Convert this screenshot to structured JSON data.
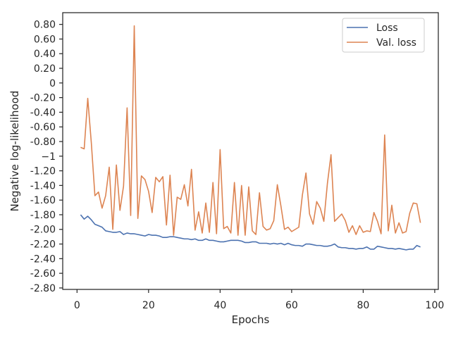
{
  "chart_data": {
    "type": "line",
    "xlabel": "Epochs",
    "ylabel": "Negative log-likelihood",
    "xlim": [
      -4,
      101
    ],
    "ylim": [
      -2.82,
      0.96
    ],
    "grid": false,
    "legend_position": "top-right",
    "x_ticks": [
      0,
      20,
      40,
      60,
      80,
      100
    ],
    "x_tick_labels": [
      "0",
      "20",
      "40",
      "60",
      "80",
      "100"
    ],
    "y_ticks": [
      0.8,
      0.6,
      0.4,
      0.2,
      0,
      -0.2,
      -0.4,
      -0.6,
      -0.8,
      -1.0,
      -1.2,
      -1.4,
      -1.6,
      -1.8,
      -2.0,
      -2.2,
      -2.4,
      -2.6,
      -2.8
    ],
    "y_tick_labels": [
      "0.80",
      "0.60",
      "0.40",
      "0.20",
      "0",
      "-0.20",
      "-0.40",
      "-0.60",
      "-0.80",
      "−1",
      "-1.20",
      "-1.40",
      "-1.60",
      "-1.80",
      "-2.00",
      "-2.20",
      "-2.40",
      "-2.60",
      "-2.80"
    ],
    "series": [
      {
        "name": "Loss",
        "color": "#4c72b0",
        "x": [
          1,
          2,
          3,
          4,
          5,
          6,
          7,
          8,
          9,
          10,
          11,
          12,
          13,
          14,
          15,
          16,
          17,
          18,
          19,
          20,
          21,
          22,
          23,
          24,
          25,
          26,
          27,
          28,
          29,
          30,
          31,
          32,
          33,
          34,
          35,
          36,
          37,
          38,
          39,
          40,
          41,
          42,
          43,
          44,
          45,
          46,
          47,
          48,
          49,
          50,
          51,
          52,
          53,
          54,
          55,
          56,
          57,
          58,
          59,
          60,
          61,
          62,
          63,
          64,
          65,
          66,
          67,
          68,
          69,
          70,
          71,
          72,
          73,
          74,
          75,
          76,
          77,
          78,
          79,
          80,
          81,
          82,
          83,
          84,
          85,
          86,
          87,
          88,
          89,
          90,
          91,
          92,
          93,
          94,
          95,
          96
        ],
        "y": [
          -1.8,
          -1.86,
          -1.82,
          -1.87,
          -1.93,
          -1.95,
          -1.97,
          -2.02,
          -2.03,
          -2.04,
          -2.04,
          -2.03,
          -2.07,
          -2.05,
          -2.06,
          -2.06,
          -2.07,
          -2.08,
          -2.09,
          -2.07,
          -2.08,
          -2.08,
          -2.09,
          -2.11,
          -2.11,
          -2.1,
          -2.1,
          -2.11,
          -2.12,
          -2.13,
          -2.13,
          -2.14,
          -2.13,
          -2.15,
          -2.15,
          -2.13,
          -2.15,
          -2.15,
          -2.16,
          -2.17,
          -2.17,
          -2.16,
          -2.15,
          -2.15,
          -2.15,
          -2.16,
          -2.18,
          -2.18,
          -2.17,
          -2.17,
          -2.19,
          -2.19,
          -2.19,
          -2.2,
          -2.19,
          -2.2,
          -2.19,
          -2.21,
          -2.19,
          -2.21,
          -2.22,
          -2.22,
          -2.23,
          -2.2,
          -2.2,
          -2.21,
          -2.22,
          -2.22,
          -2.23,
          -2.23,
          -2.22,
          -2.2,
          -2.24,
          -2.25,
          -2.25,
          -2.26,
          -2.26,
          -2.27,
          -2.26,
          -2.26,
          -2.24,
          -2.27,
          -2.27,
          -2.23,
          -2.24,
          -2.25,
          -2.26,
          -2.26,
          -2.27,
          -2.26,
          -2.27,
          -2.28,
          -2.27,
          -2.27,
          -2.22,
          -2.24
        ]
      },
      {
        "name": "Val. loss",
        "color": "#dd8452",
        "x": [
          1,
          2,
          3,
          4,
          5,
          6,
          7,
          8,
          9,
          10,
          11,
          12,
          13,
          14,
          15,
          16,
          17,
          18,
          19,
          20,
          21,
          22,
          23,
          24,
          25,
          26,
          27,
          28,
          29,
          30,
          31,
          32,
          33,
          34,
          35,
          36,
          37,
          38,
          39,
          40,
          41,
          42,
          43,
          44,
          45,
          46,
          47,
          48,
          49,
          50,
          51,
          52,
          53,
          54,
          55,
          56,
          57,
          58,
          59,
          60,
          61,
          62,
          63,
          64,
          65,
          66,
          67,
          68,
          69,
          70,
          71,
          72,
          73,
          74,
          75,
          76,
          77,
          78,
          79,
          80,
          81,
          82,
          83,
          84,
          85,
          86,
          87,
          88,
          89,
          90,
          91,
          92,
          93,
          94,
          95,
          96
        ],
        "y": [
          -0.88,
          -0.9,
          -0.21,
          -0.82,
          -1.54,
          -1.49,
          -1.71,
          -1.54,
          -1.15,
          -2.0,
          -1.12,
          -1.74,
          -1.41,
          -0.34,
          -1.81,
          0.78,
          -1.85,
          -1.27,
          -1.32,
          -1.48,
          -1.77,
          -1.29,
          -1.35,
          -1.28,
          -1.94,
          -1.26,
          -2.08,
          -1.56,
          -1.59,
          -1.39,
          -1.68,
          -1.18,
          -2.01,
          -1.76,
          -2.05,
          -1.64,
          -2.04,
          -1.36,
          -2.06,
          -0.91,
          -1.99,
          -1.96,
          -2.05,
          -1.36,
          -2.08,
          -1.4,
          -2.08,
          -1.42,
          -2.02,
          -2.07,
          -1.5,
          -1.96,
          -2.01,
          -1.99,
          -1.88,
          -1.39,
          -1.68,
          -2.0,
          -1.97,
          -2.03,
          -2.0,
          -1.97,
          -1.53,
          -1.23,
          -1.79,
          -1.93,
          -1.62,
          -1.71,
          -1.89,
          -1.37,
          -0.98,
          -1.89,
          -1.84,
          -1.79,
          -1.88,
          -2.04,
          -1.95,
          -2.07,
          -1.95,
          -2.04,
          -2.02,
          -2.03,
          -1.77,
          -1.89,
          -2.06,
          -0.71,
          -2.02,
          -1.67,
          -2.05,
          -1.91,
          -2.05,
          -2.03,
          -1.78,
          -1.64,
          -1.65,
          -1.91
        ]
      }
    ]
  }
}
